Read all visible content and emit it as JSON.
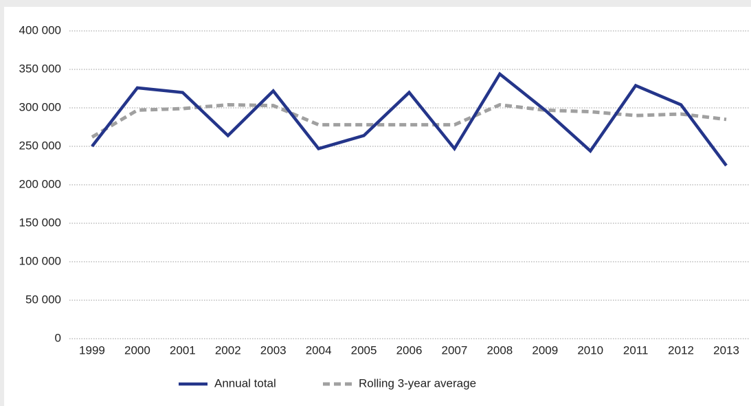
{
  "chart_data": {
    "type": "line",
    "categories": [
      "1999",
      "2000",
      "2001",
      "2002",
      "2003",
      "2004",
      "2005",
      "2006",
      "2007",
      "2008",
      "2009",
      "2010",
      "2011",
      "2012",
      "2013"
    ],
    "series": [
      {
        "name": "Annual total",
        "color": "#24358a",
        "dash": false,
        "values": [
          250000,
          326000,
          320000,
          264000,
          322000,
          247000,
          264000,
          320000,
          247000,
          344000,
          297000,
          244000,
          329000,
          304000,
          225000
        ]
      },
      {
        "name": "Rolling 3-year average",
        "color": "#a0a0a0",
        "dash": true,
        "values": [
          262000,
          297000,
          299000,
          304000,
          303000,
          278000,
          278000,
          278000,
          278000,
          304000,
          297000,
          295000,
          290000,
          292000,
          285000
        ]
      }
    ],
    "ylim": [
      0,
      400000
    ],
    "yticks": [
      {
        "value": 0,
        "label": "0"
      },
      {
        "value": 50000,
        "label": "50 000"
      },
      {
        "value": 100000,
        "label": "100 000"
      },
      {
        "value": 150000,
        "label": "150 000"
      },
      {
        "value": 200000,
        "label": "200 000"
      },
      {
        "value": 250000,
        "label": "250 000"
      },
      {
        "value": 300000,
        "label": "300 000"
      },
      {
        "value": 350000,
        "label": "350 000"
      },
      {
        "value": 400000,
        "label": "400 000"
      }
    ],
    "grid": true,
    "legend": "bottom"
  }
}
